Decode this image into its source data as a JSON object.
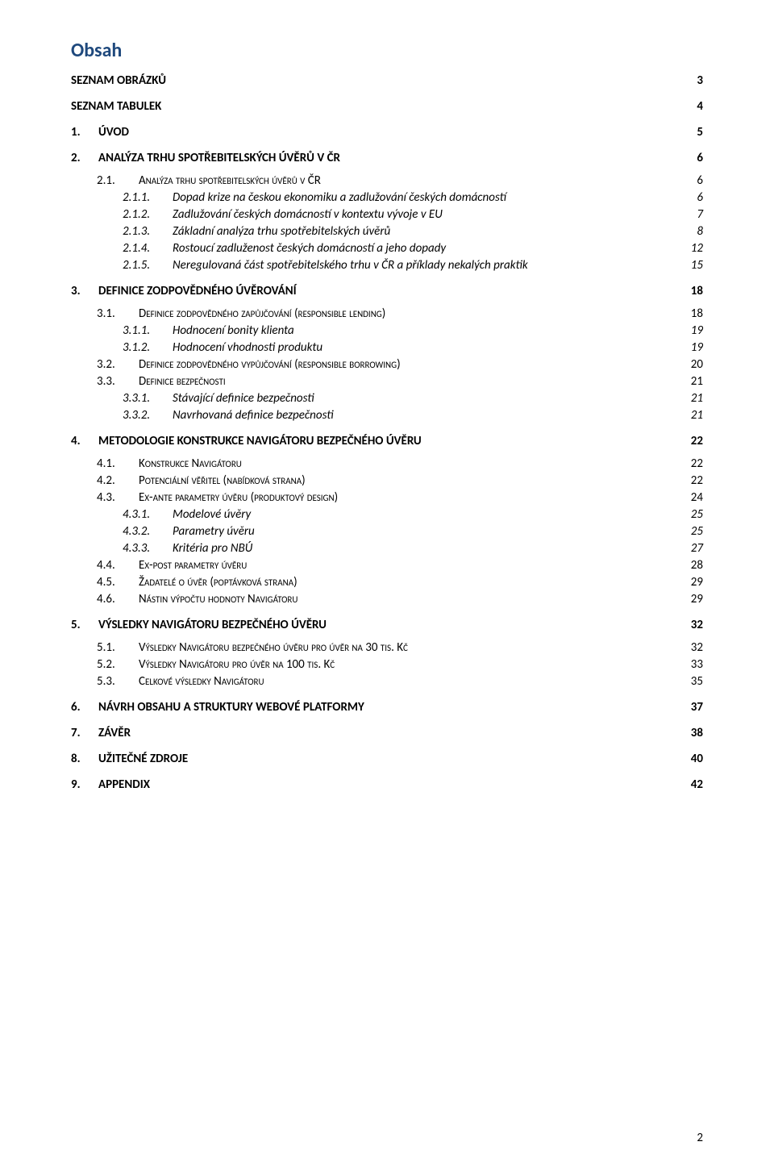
{
  "title": "Obsah",
  "title_color": "#1f497d",
  "page_number": "2",
  "font_family": "Calibri",
  "entries": [
    {
      "level": 0,
      "num": "",
      "text": "SEZNAM OBRÁZKŮ",
      "page": "3"
    },
    {
      "level": 0,
      "num": "",
      "text": "SEZNAM TABULEK",
      "page": "4"
    },
    {
      "level": 1,
      "num": "1.",
      "text": "ÚVOD",
      "page": "5"
    },
    {
      "level": 1,
      "num": "2.",
      "text": "ANALÝZA TRHU SPOTŘEBITELSKÝCH ÚVĚRŮ V ČR",
      "page": "6"
    },
    {
      "level": 2,
      "num": "2.1.",
      "text": "Analýza trhu spotřebitelských úvěrů v ČR",
      "page": "6"
    },
    {
      "level": 3,
      "num": "2.1.1.",
      "text": "Dopad krize na českou ekonomiku a zadlužování českých domácností",
      "page": "6"
    },
    {
      "level": 3,
      "num": "2.1.2.",
      "text": "Zadlužování českých domácností v kontextu vývoje v EU",
      "page": "7"
    },
    {
      "level": 3,
      "num": "2.1.3.",
      "text": "Základní analýza trhu spotřebitelských úvěrů",
      "page": "8"
    },
    {
      "level": 3,
      "num": "2.1.4.",
      "text": "Rostoucí zadluženost českých domácností a jeho dopady",
      "page": "12"
    },
    {
      "level": 3,
      "num": "2.1.5.",
      "text": "Neregulovaná část spotřebitelského trhu v ČR a příklady nekalých praktik",
      "page": "15"
    },
    {
      "level": 1,
      "num": "3.",
      "text": "DEFINICE ZODPOVĚDNÉHO ÚVĚROVÁNÍ",
      "page": "18"
    },
    {
      "level": 2,
      "num": "3.1.",
      "text": "Definice zodpovědného zapůjčování (responsible lending)",
      "page": "18"
    },
    {
      "level": 3,
      "num": "3.1.1.",
      "text": "Hodnocení bonity klienta",
      "page": "19"
    },
    {
      "level": 3,
      "num": "3.1.2.",
      "text": "Hodnocení vhodnosti produktu",
      "page": "19"
    },
    {
      "level": 2,
      "num": "3.2.",
      "text": "Definice zodpovědného vypůjčování (responsible borrowing)",
      "page": "20"
    },
    {
      "level": 2,
      "num": "3.3.",
      "text": "Definice bezpečnosti",
      "page": "21"
    },
    {
      "level": 3,
      "num": "3.3.1.",
      "text": "Stávající definice bezpečnosti",
      "page": "21"
    },
    {
      "level": 3,
      "num": "3.3.2.",
      "text": "Navrhovaná definice bezpečnosti",
      "page": "21"
    },
    {
      "level": 1,
      "num": "4.",
      "text": "METODOLOGIE KONSTRUKCE NAVIGÁTORU BEZPEČNÉHO ÚVĚRU",
      "page": "22"
    },
    {
      "level": 2,
      "num": "4.1.",
      "text": "Konstrukce Navigátoru",
      "page": "22"
    },
    {
      "level": 2,
      "num": "4.2.",
      "text": "Potenciální věřitel (nabídková strana)",
      "page": "22"
    },
    {
      "level": 2,
      "num": "4.3.",
      "text": "Ex-ante parametry úvěru (produktový design)",
      "page": "24"
    },
    {
      "level": 3,
      "num": "4.3.1.",
      "text": "Modelové úvěry",
      "page": "25"
    },
    {
      "level": 3,
      "num": "4.3.2.",
      "text": "Parametry úvěru",
      "page": "25"
    },
    {
      "level": 3,
      "num": "4.3.3.",
      "text": "Kritéria pro NBÚ",
      "page": "27"
    },
    {
      "level": 2,
      "num": "4.4.",
      "text": "Ex-post parametry úvěru",
      "page": "28"
    },
    {
      "level": 2,
      "num": "4.5.",
      "text": "Žadatelé o úvěr (poptávková strana)",
      "page": "29"
    },
    {
      "level": 2,
      "num": "4.6.",
      "text": "Nástin výpočtu hodnoty Navigátoru",
      "page": "29"
    },
    {
      "level": 1,
      "num": "5.",
      "text": "VÝSLEDKY NAVIGÁTORU BEZPEČNÉHO ÚVĚRU",
      "page": "32"
    },
    {
      "level": 2,
      "num": "5.1.",
      "text": "Výsledky Navigátoru bezpečného úvěru pro úvěr na 30 tis. Kč",
      "page": "32"
    },
    {
      "level": 2,
      "num": "5.2.",
      "text": "Výsledky Navigátoru pro úvěr na 100 tis. Kč",
      "page": "33"
    },
    {
      "level": 2,
      "num": "5.3.",
      "text": "Celkové výsledky Navigátoru",
      "page": "35"
    },
    {
      "level": 1,
      "num": "6.",
      "text": "NÁVRH OBSAHU A STRUKTURY WEBOVÉ PLATFORMY",
      "page": "37"
    },
    {
      "level": 1,
      "num": "7.",
      "text": "ZÁVĚR",
      "page": "38"
    },
    {
      "level": 1,
      "num": "8.",
      "text": "UŽITEČNÉ ZDROJE",
      "page": "40"
    },
    {
      "level": 1,
      "num": "9.",
      "text": "APPENDIX",
      "page": "42"
    }
  ]
}
